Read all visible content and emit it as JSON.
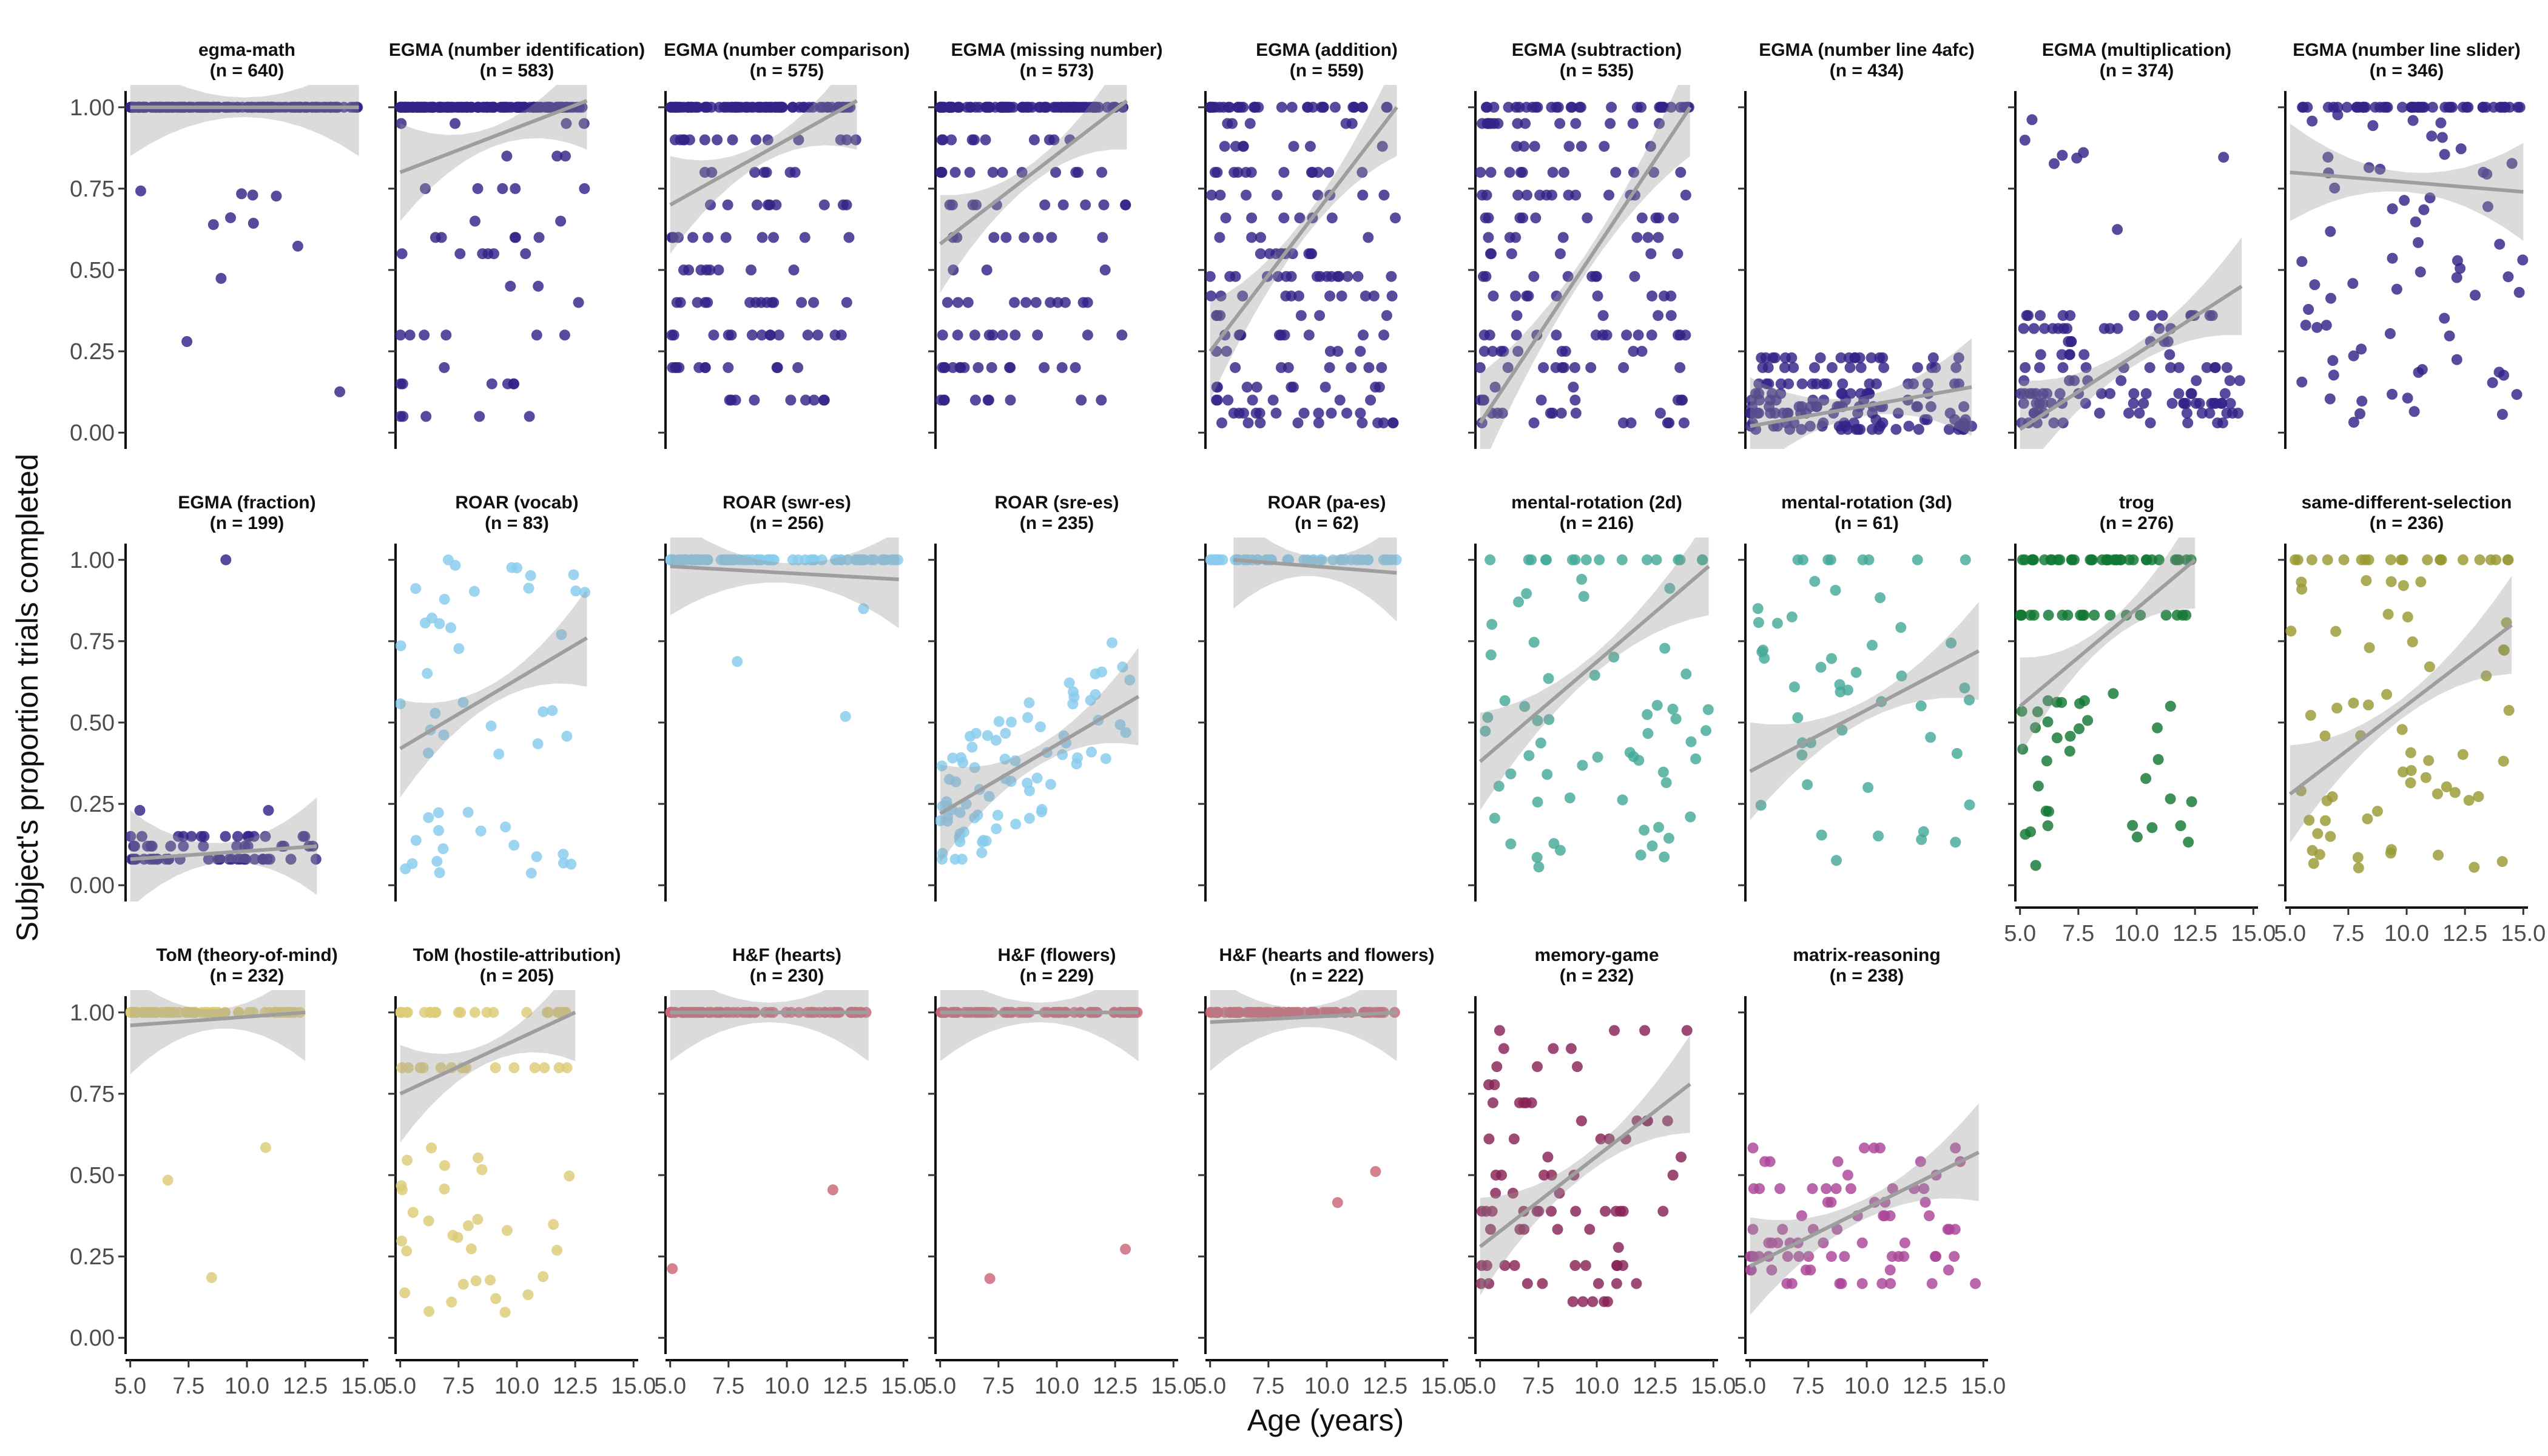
{
  "figure": {
    "xlabel": "Age (years)",
    "ylabel": "Subject's proportion trials completed"
  },
  "chart_data": {
    "type": "scatter",
    "xlim": [
      4.8,
      15.2
    ],
    "ylim": [
      -0.05,
      1.05
    ],
    "xticks": [
      5.0,
      7.5,
      10.0,
      12.5,
      15.0
    ],
    "xtick_labels": [
      "5.0",
      "7.5",
      "10.0",
      "12.5",
      "15.0"
    ],
    "yticks": [
      0.0,
      0.25,
      0.5,
      0.75,
      1.0
    ],
    "ytick_labels": [
      "0.00",
      "0.25",
      "0.50",
      "0.75",
      "1.00"
    ],
    "grid": false,
    "legend": "none",
    "facets": [
      {
        "title": "egma-math",
        "n_label": "(n = 640)",
        "color": "#332288",
        "pattern": "top",
        "fit": [
          1.0,
          1.0
        ],
        "x_range": [
          5.0,
          14.8
        ]
      },
      {
        "title": "EGMA (number identification)",
        "n_label": "(n = 583)",
        "color": "#332288",
        "pattern": "top_sparse",
        "fit": [
          0.8,
          1.02
        ],
        "x_range": [
          5.0,
          13.0
        ]
      },
      {
        "title": "EGMA (number comparison)",
        "n_label": "(n = 575)",
        "color": "#332288",
        "pattern": "bands",
        "fit": [
          0.7,
          1.02
        ],
        "x_range": [
          5.0,
          13.0
        ]
      },
      {
        "title": "EGMA (missing number)",
        "n_label": "(n = 573)",
        "color": "#332288",
        "pattern": "bands",
        "fit": [
          0.58,
          1.02
        ],
        "x_range": [
          5.0,
          13.0
        ]
      },
      {
        "title": "EGMA (addition)",
        "n_label": "(n = 559)",
        "color": "#332288",
        "pattern": "wide_bands",
        "fit": [
          0.25,
          1.0
        ],
        "x_range": [
          5.0,
          13.0
        ]
      },
      {
        "title": "EGMA (subtraction)",
        "n_label": "(n = 535)",
        "color": "#332288",
        "pattern": "wide_bands",
        "fit": [
          0.03,
          1.0
        ],
        "x_range": [
          5.0,
          14.0
        ]
      },
      {
        "title": "EGMA (number line 4afc)",
        "n_label": "(n = 434)",
        "color": "#332288",
        "pattern": "low",
        "fit": [
          0.02,
          0.14
        ],
        "x_range": [
          5.0,
          14.5
        ]
      },
      {
        "title": "EGMA (multiplication)",
        "n_label": "(n = 374)",
        "color": "#332288",
        "pattern": "low_bands",
        "fit": [
          0.01,
          0.45
        ],
        "x_range": [
          5.0,
          14.5
        ]
      },
      {
        "title": "EGMA (number line slider)",
        "n_label": "(n = 346)",
        "color": "#332288",
        "pattern": "spread_top",
        "fit": [
          0.8,
          0.74
        ],
        "x_range": [
          5.0,
          15.0
        ]
      },
      {
        "title": "EGMA (fraction)",
        "n_label": "(n = 199)",
        "color": "#332288",
        "pattern": "fraction",
        "fit": [
          0.08,
          0.12
        ],
        "x_range": [
          5.0,
          13.0
        ]
      },
      {
        "title": "ROAR (vocab)",
        "n_label": "(n = 83)",
        "color": "#88CCEE",
        "pattern": "vocab",
        "fit": [
          0.42,
          0.76
        ],
        "x_range": [
          5.0,
          13.0
        ]
      },
      {
        "title": "ROAR (swr-es)",
        "n_label": "(n = 256)",
        "color": "#88CCEE",
        "pattern": "top",
        "fit": [
          0.98,
          0.94
        ],
        "x_range": [
          5.0,
          14.8
        ]
      },
      {
        "title": "ROAR (sre-es)",
        "n_label": "(n = 235)",
        "color": "#88CCEE",
        "pattern": "cloud",
        "fit": [
          0.22,
          0.58
        ],
        "x_range": [
          5.0,
          13.5
        ]
      },
      {
        "title": "ROAR (pa-es)",
        "n_label": "(n = 62)",
        "color": "#88CCEE",
        "pattern": "top",
        "fit": [
          1.0,
          0.96
        ],
        "x_range": [
          6.0,
          13.0
        ]
      },
      {
        "title": "mental-rotation (2d)",
        "n_label": "(n = 216)",
        "color": "#44AA99",
        "pattern": "spread",
        "fit": [
          0.38,
          0.98
        ],
        "x_range": [
          5.0,
          14.8
        ]
      },
      {
        "title": "mental-rotation (3d)",
        "n_label": "(n = 61)",
        "color": "#44AA99",
        "pattern": "spread",
        "fit": [
          0.35,
          0.72
        ],
        "x_range": [
          5.0,
          14.8
        ]
      },
      {
        "title": "trog",
        "n_label": "(n = 276)",
        "color": "#117733",
        "pattern": "top_bands",
        "fit": [
          0.55,
          1.0
        ],
        "x_range": [
          5.0,
          12.5
        ]
      },
      {
        "title": "same-different-selection",
        "n_label": "(n = 236)",
        "color": "#999933",
        "pattern": "spread",
        "fit": [
          0.28,
          0.8
        ],
        "x_range": [
          5.0,
          14.5
        ]
      },
      {
        "title": "ToM (theory-of-mind)",
        "n_label": "(n = 232)",
        "color": "#DDCC77",
        "pattern": "top",
        "fit": [
          0.96,
          1.0
        ],
        "x_range": [
          5.0,
          12.5
        ]
      },
      {
        "title": "ToM (hostile-attribution)",
        "n_label": "(n = 205)",
        "color": "#DDCC77",
        "pattern": "top_bands",
        "fit": [
          0.75,
          1.0
        ],
        "x_range": [
          5.0,
          12.5
        ]
      },
      {
        "title": "H&F (hearts)",
        "n_label": "(n = 230)",
        "color": "#CC6677",
        "pattern": "top",
        "fit": [
          1.0,
          1.0
        ],
        "x_range": [
          5.0,
          13.5
        ]
      },
      {
        "title": "H&F (flowers)",
        "n_label": "(n = 229)",
        "color": "#CC6677",
        "pattern": "top",
        "fit": [
          1.0,
          1.0
        ],
        "x_range": [
          5.0,
          13.5
        ]
      },
      {
        "title": "H&F (hearts and flowers)",
        "n_label": "(n = 222)",
        "color": "#CC6677",
        "pattern": "top",
        "fit": [
          0.97,
          1.0
        ],
        "x_range": [
          5.0,
          13.0
        ]
      },
      {
        "title": "memory-game",
        "n_label": "(n = 232)",
        "color": "#882255",
        "pattern": "memory",
        "fit": [
          0.28,
          0.78
        ],
        "x_range": [
          5.0,
          14.0
        ]
      },
      {
        "title": "matrix-reasoning",
        "n_label": "(n = 238)",
        "color": "#AA4499",
        "pattern": "matrix",
        "fit": [
          0.22,
          0.57
        ],
        "x_range": [
          5.0,
          14.8
        ]
      }
    ]
  }
}
